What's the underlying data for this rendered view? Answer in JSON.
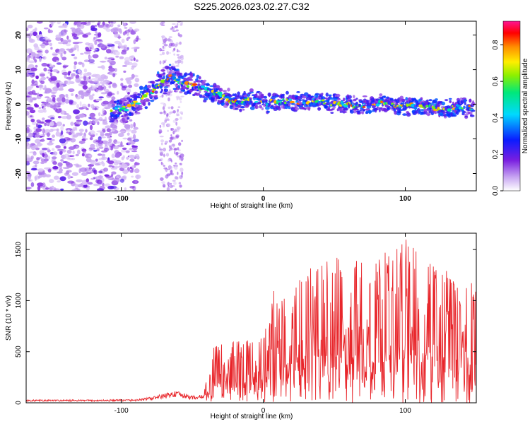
{
  "chart_data": [
    {
      "type": "heatmap",
      "title": "S225.2026.023.02.27.C32",
      "xlabel": "Height of straight line (km)",
      "ylabel": "Frequency (Hz)",
      "xlim": [
        -167,
        150
      ],
      "ylim": [
        -25,
        24
      ],
      "xticks": [
        -100,
        0,
        100
      ],
      "yticks": [
        -20,
        -10,
        0,
        10,
        20
      ],
      "colorbar": {
        "label": "Normalized spectral amplitude",
        "range": [
          0,
          0.93
        ],
        "ticks": [
          0.0,
          0.2,
          0.4,
          0.6,
          0.8
        ],
        "tick_labels": [
          "0.0",
          "0.2",
          "0.4",
          "0.6",
          "0.8"
        ]
      },
      "ridge": {
        "description": "dominant frequency track",
        "x": [
          -107,
          -95,
          -85,
          -78,
          -72,
          -66,
          -60,
          -55,
          -50,
          -45,
          -40,
          -30,
          -20,
          -10,
          0,
          10,
          20,
          30,
          40,
          50,
          60,
          70,
          80,
          90,
          100,
          110,
          120,
          130,
          140,
          148
        ],
        "y": [
          -1.5,
          -1,
          1.5,
          4,
          6,
          8,
          6.5,
          5.5,
          6,
          5,
          4,
          2.5,
          0.5,
          1.5,
          0.5,
          0.5,
          1,
          0.5,
          1,
          0,
          0,
          -0.5,
          0.5,
          -0.5,
          -0.5,
          -0.5,
          -1,
          -1,
          -1,
          -1
        ]
      },
      "noise_region_x": [
        -167,
        -88
      ],
      "noise_columns_x": [
        -73,
        -57
      ]
    },
    {
      "type": "line",
      "xlabel": "Height of straight line (km)",
      "ylabel": "SNR (10 * v/v)",
      "xlim": [
        -167,
        150
      ],
      "ylim": [
        0,
        1660
      ],
      "xticks": [
        -100,
        0,
        100
      ],
      "yticks": [
        0,
        500,
        1000,
        1500
      ],
      "series": [
        {
          "name": "SNR",
          "color": "#e8262b",
          "envelope_x": [
            -167,
            -120,
            -90,
            -80,
            -70,
            -62,
            -50,
            -42,
            -38,
            -35,
            -30,
            -20,
            -10,
            -5,
            0,
            5,
            10,
            20,
            30,
            40,
            50,
            60,
            70,
            80,
            90,
            100,
            110,
            120,
            130,
            140,
            150
          ],
          "envelope_y": [
            30,
            30,
            35,
            55,
            90,
            120,
            70,
            80,
            400,
            620,
            600,
            600,
            620,
            570,
            700,
            1200,
            1050,
            1150,
            1300,
            1350,
            1450,
            1450,
            1400,
            1450,
            1500,
            1650,
            1450,
            1400,
            1300,
            1250,
            1200
          ]
        }
      ]
    }
  ]
}
